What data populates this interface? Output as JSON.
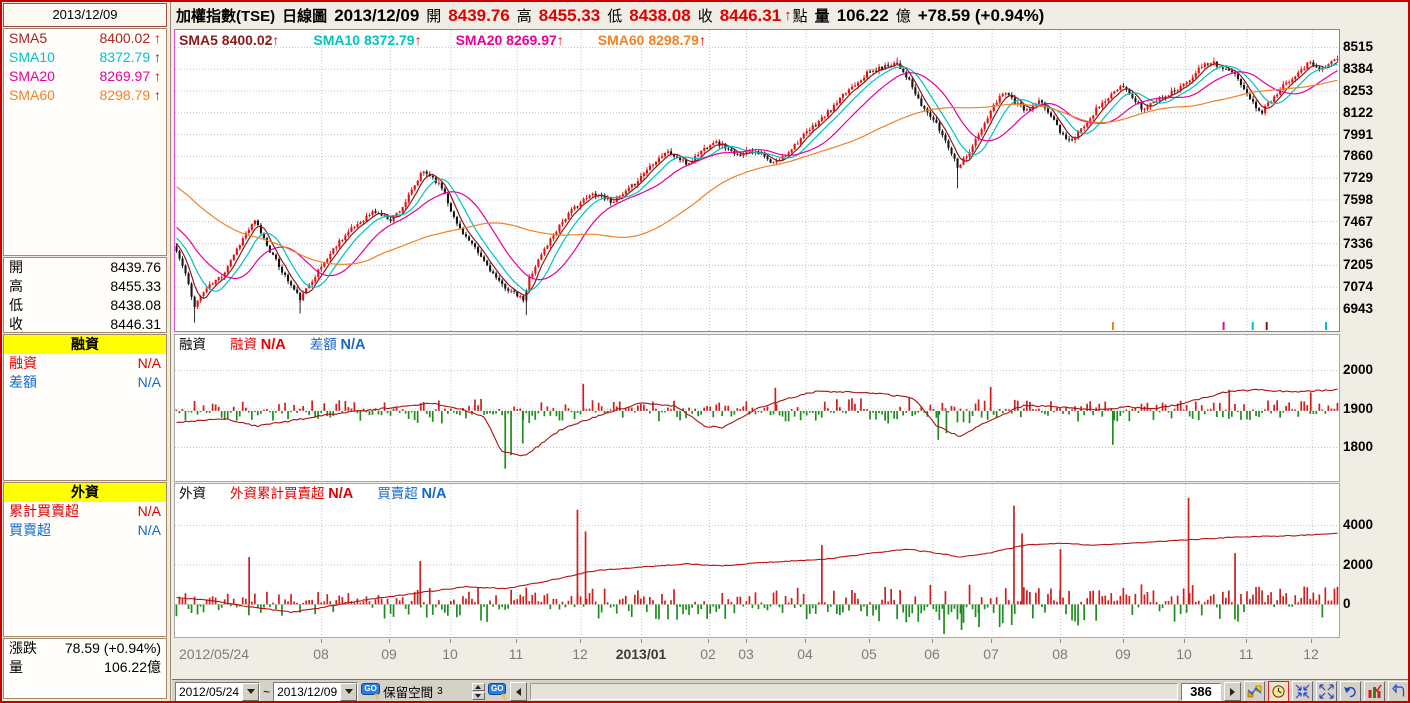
{
  "window": {
    "title": "加權指數(TSE) 日線圖"
  },
  "sidebar": {
    "date": "2013/12/09",
    "sma_rows": [
      {
        "label": "SMA5",
        "value": "8400.02",
        "arrow": "↑",
        "color": "#aa2222"
      },
      {
        "label": "SMA10",
        "value": "8372.79",
        "arrow": "↑",
        "color": "#00c3c3"
      },
      {
        "label": "SMA20",
        "value": "8269.97",
        "arrow": "↑",
        "color": "#e8009e"
      },
      {
        "label": "SMA60",
        "value": "8298.79",
        "arrow": "↑",
        "color": "#f08228"
      }
    ],
    "ohlc_rows": [
      {
        "label": "開",
        "value": "8439.76"
      },
      {
        "label": "高",
        "value": "8455.33"
      },
      {
        "label": "低",
        "value": "8438.08"
      },
      {
        "label": "收",
        "value": "8446.31"
      }
    ],
    "margin": {
      "header": "融資",
      "rows": [
        {
          "label": "融資",
          "value": "N/A",
          "color": "#e00000"
        },
        {
          "label": "差額",
          "value": "N/A",
          "color": "#1569c8"
        }
      ]
    },
    "foreign": {
      "header": "外資",
      "rows": [
        {
          "label": "累計買賣超",
          "value": "N/A",
          "color": "#e00000"
        },
        {
          "label": "買賣超",
          "value": "N/A",
          "color": "#1569c8"
        }
      ]
    },
    "footer_rows": [
      {
        "label": "漲跌",
        "value": "78.59 (+0.94%)"
      },
      {
        "label": "量",
        "value": "106.22億"
      }
    ]
  },
  "header": {
    "title": "加權指數(TSE)",
    "period": "日線圖",
    "date": "2013/12/09",
    "open_label": "開",
    "open": "8439.76",
    "high_label": "高",
    "high": "8455.33",
    "low_label": "低",
    "low": "8438.08",
    "close_label": "收",
    "close": "8446.31",
    "arrow": "↑",
    "point": "點",
    "vol_label": "量",
    "volume": "106.22",
    "vol_unit": "億",
    "change": "+78.59 (+0.94%)"
  },
  "main_legend": [
    {
      "label": "SMA5",
      "value": "8400.02",
      "arrow": "↑",
      "color": "#8b1a1a"
    },
    {
      "label": "SMA10",
      "value": "8372.79",
      "arrow": "↑",
      "color": "#00c3c3"
    },
    {
      "label": "SMA20",
      "value": "8269.97",
      "arrow": "↑",
      "color": "#e8009e"
    },
    {
      "label": "SMA60",
      "value": "8298.79",
      "arrow": "↑",
      "color": "#f08228"
    }
  ],
  "sub1_legend": {
    "name": "融資",
    "s1_label": "融資",
    "s1_value": "N/A",
    "s2_label": "差額",
    "s2_value": "N/A",
    "s1_color": "#e00000",
    "s2_color": "#1569c8"
  },
  "sub2_legend": {
    "name": "外資",
    "s1_label": "外資累計買賣超",
    "s1_value": "N/A",
    "s2_label": "買賣超",
    "s2_value": "N/A",
    "s1_color": "#e00000",
    "s2_color": "#1569c8"
  },
  "xaxis": {
    "start_label": "2012/05/24",
    "start_f": 0.004,
    "ticks": [
      {
        "label": "08",
        "f": 0.126
      },
      {
        "label": "09",
        "f": 0.185
      },
      {
        "label": "10",
        "f": 0.237
      },
      {
        "label": "11",
        "f": 0.294
      },
      {
        "label": "12",
        "f": 0.349
      },
      {
        "label": "2013/01",
        "f": 0.401,
        "bold": true
      },
      {
        "label": "02",
        "f": 0.459
      },
      {
        "label": "03",
        "f": 0.491
      },
      {
        "label": "04",
        "f": 0.542
      },
      {
        "label": "05",
        "f": 0.597
      },
      {
        "label": "06",
        "f": 0.651
      },
      {
        "label": "07",
        "f": 0.702
      },
      {
        "label": "08",
        "f": 0.761
      },
      {
        "label": "09",
        "f": 0.815
      },
      {
        "label": "10",
        "f": 0.868
      },
      {
        "label": "11",
        "f": 0.921
      },
      {
        "label": "12",
        "f": 0.977
      }
    ]
  },
  "toolbar": {
    "from_date": "2012/05/24",
    "range_sep": "~",
    "to_date": "2013/12/09",
    "go_label": "GO",
    "reserve_label": "保留空間",
    "reserve_value": "3",
    "bar_count": "386",
    "icons": [
      "chart-settings",
      "clock",
      "collapse",
      "expand",
      "undo",
      "volume-bars",
      "return"
    ]
  },
  "chart_data": [
    {
      "type": "candlestick",
      "name": "加權指數(TSE) 日線圖",
      "bars": 386,
      "y_ticks": [
        8515,
        8384,
        8253,
        8122,
        7991,
        7860,
        7729,
        7598,
        7467,
        7336,
        7205,
        7074,
        6943
      ],
      "y_top": 8620,
      "y_bottom": 6810,
      "up_color": "#e01010",
      "down_color": "#151515",
      "sma": [
        {
          "window": 5,
          "color": "#8b1a1a"
        },
        {
          "window": 10,
          "color": "#00c3c3"
        },
        {
          "window": 20,
          "color": "#e8009e"
        },
        {
          "window": 60,
          "color": "#f08228"
        }
      ],
      "seed": 11,
      "price_path": [
        [
          0,
          7290
        ],
        [
          0.008,
          7150
        ],
        [
          0.015,
          6960
        ],
        [
          0.025,
          7060
        ],
        [
          0.04,
          7150
        ],
        [
          0.05,
          7280
        ],
        [
          0.06,
          7400
        ],
        [
          0.068,
          7470
        ],
        [
          0.08,
          7300
        ],
        [
          0.09,
          7180
        ],
        [
          0.1,
          7070
        ],
        [
          0.107,
          7000
        ],
        [
          0.115,
          7100
        ],
        [
          0.125,
          7200
        ],
        [
          0.14,
          7350
        ],
        [
          0.155,
          7450
        ],
        [
          0.17,
          7530
        ],
        [
          0.185,
          7480
        ],
        [
          0.195,
          7560
        ],
        [
          0.205,
          7680
        ],
        [
          0.212,
          7770
        ],
        [
          0.22,
          7740
        ],
        [
          0.23,
          7660
        ],
        [
          0.24,
          7470
        ],
        [
          0.252,
          7350
        ],
        [
          0.265,
          7230
        ],
        [
          0.278,
          7100
        ],
        [
          0.29,
          7040
        ],
        [
          0.3,
          6990
        ],
        [
          0.303,
          7120
        ],
        [
          0.315,
          7280
        ],
        [
          0.33,
          7450
        ],
        [
          0.345,
          7570
        ],
        [
          0.36,
          7640
        ],
        [
          0.375,
          7590
        ],
        [
          0.385,
          7630
        ],
        [
          0.395,
          7700
        ],
        [
          0.41,
          7820
        ],
        [
          0.422,
          7890
        ],
        [
          0.432,
          7850
        ],
        [
          0.44,
          7810
        ],
        [
          0.45,
          7880
        ],
        [
          0.462,
          7950
        ],
        [
          0.472,
          7920
        ],
        [
          0.482,
          7860
        ],
        [
          0.493,
          7900
        ],
        [
          0.503,
          7880
        ],
        [
          0.513,
          7810
        ],
        [
          0.523,
          7860
        ],
        [
          0.535,
          7950
        ],
        [
          0.55,
          8050
        ],
        [
          0.565,
          8150
        ],
        [
          0.58,
          8270
        ],
        [
          0.595,
          8360
        ],
        [
          0.61,
          8400
        ],
        [
          0.62,
          8430
        ],
        [
          0.63,
          8330
        ],
        [
          0.64,
          8180
        ],
        [
          0.652,
          8080
        ],
        [
          0.663,
          7950
        ],
        [
          0.673,
          7800
        ],
        [
          0.682,
          7880
        ],
        [
          0.692,
          8000
        ],
        [
          0.703,
          8150
        ],
        [
          0.713,
          8260
        ],
        [
          0.723,
          8180
        ],
        [
          0.733,
          8130
        ],
        [
          0.743,
          8190
        ],
        [
          0.752,
          8120
        ],
        [
          0.763,
          7990
        ],
        [
          0.772,
          7950
        ],
        [
          0.782,
          8050
        ],
        [
          0.793,
          8150
        ],
        [
          0.805,
          8230
        ],
        [
          0.815,
          8280
        ],
        [
          0.825,
          8200
        ],
        [
          0.833,
          8140
        ],
        [
          0.843,
          8200
        ],
        [
          0.853,
          8230
        ],
        [
          0.863,
          8270
        ],
        [
          0.873,
          8330
        ],
        [
          0.883,
          8400
        ],
        [
          0.893,
          8430
        ],
        [
          0.9,
          8390
        ],
        [
          0.91,
          8360
        ],
        [
          0.92,
          8270
        ],
        [
          0.928,
          8170
        ],
        [
          0.935,
          8130
        ],
        [
          0.945,
          8220
        ],
        [
          0.955,
          8300
        ],
        [
          0.965,
          8360
        ],
        [
          0.975,
          8420
        ],
        [
          0.985,
          8390
        ],
        [
          0.993,
          8420
        ],
        [
          1,
          8446
        ]
      ],
      "wicks": [
        [
          0.015,
          6860
        ],
        [
          0.107,
          6915
        ],
        [
          0.3,
          6905
        ],
        [
          0.673,
          7668
        ],
        [
          0.62,
          8455
        ],
        [
          0.893,
          8455
        ]
      ],
      "bottom_markers": [
        {
          "f": 0.805,
          "color": "#f08228"
        },
        {
          "f": 0.9,
          "color": "#e8009e"
        },
        {
          "f": 0.925,
          "color": "#00c3c3"
        },
        {
          "f": 0.937,
          "color": "#8b1a1a"
        },
        {
          "f": 0.988,
          "color": "#00c3c3"
        }
      ]
    },
    {
      "type": "bar+line",
      "name": "融資",
      "y_ticks": [
        2000,
        1900,
        1800
      ],
      "y_top": 2092,
      "y_bottom": 1713,
      "bar_base": 1895,
      "bar_up_color": "#cc2020",
      "bar_down_color": "#1f8c1f",
      "line_color": "#aa1111",
      "seed": 23,
      "amp_path": [
        [
          0,
          26
        ],
        [
          0.2,
          30
        ],
        [
          0.27,
          42
        ],
        [
          0.32,
          30
        ],
        [
          0.45,
          26
        ],
        [
          0.55,
          30
        ],
        [
          0.64,
          38
        ],
        [
          0.75,
          28
        ],
        [
          0.9,
          26
        ],
        [
          1,
          30
        ]
      ],
      "bias_path": [
        [
          0,
          0.5
        ],
        [
          0.25,
          0.45
        ],
        [
          0.3,
          0.35
        ],
        [
          0.38,
          0.6
        ],
        [
          0.5,
          0.5
        ],
        [
          0.63,
          0.4
        ],
        [
          0.72,
          0.55
        ],
        [
          0.85,
          0.5
        ],
        [
          1,
          0.52
        ]
      ],
      "spikes": [
        [
          0.283,
          -150
        ],
        [
          0.288,
          -115
        ],
        [
          0.298,
          -85
        ],
        [
          0.35,
          70
        ],
        [
          0.515,
          60
        ],
        [
          0.655,
          -75
        ],
        [
          0.662,
          -58
        ],
        [
          0.7,
          62
        ],
        [
          0.805,
          -88
        ],
        [
          0.905,
          55
        ],
        [
          0.975,
          48
        ]
      ],
      "line_path": [
        [
          0,
          1865
        ],
        [
          0.04,
          1875
        ],
        [
          0.07,
          1855
        ],
        [
          0.1,
          1870
        ],
        [
          0.13,
          1885
        ],
        [
          0.16,
          1895
        ],
        [
          0.19,
          1905
        ],
        [
          0.22,
          1915
        ],
        [
          0.245,
          1900
        ],
        [
          0.265,
          1880
        ],
        [
          0.28,
          1790
        ],
        [
          0.3,
          1778
        ],
        [
          0.33,
          1845
        ],
        [
          0.37,
          1890
        ],
        [
          0.4,
          1915
        ],
        [
          0.43,
          1908
        ],
        [
          0.455,
          1855
        ],
        [
          0.47,
          1852
        ],
        [
          0.5,
          1900
        ],
        [
          0.53,
          1930
        ],
        [
          0.55,
          1945
        ],
        [
          0.58,
          1944
        ],
        [
          0.61,
          1938
        ],
        [
          0.635,
          1928
        ],
        [
          0.655,
          1855
        ],
        [
          0.675,
          1828
        ],
        [
          0.7,
          1870
        ],
        [
          0.73,
          1910
        ],
        [
          0.76,
          1905
        ],
        [
          0.79,
          1898
        ],
        [
          0.82,
          1905
        ],
        [
          0.84,
          1900
        ],
        [
          0.86,
          1910
        ],
        [
          0.88,
          1925
        ],
        [
          0.905,
          1945
        ],
        [
          0.93,
          1950
        ],
        [
          0.96,
          1944
        ],
        [
          1,
          1950
        ]
      ],
      "line_jitter": 4
    },
    {
      "type": "bar+line",
      "name": "外資",
      "y_ticks": [
        4000,
        2000,
        0
      ],
      "y_top": 6100,
      "y_bottom": -1650,
      "bar_base": 0,
      "bar_up_color": "#cc2020",
      "bar_down_color": "#1f8c1f",
      "line_color": "#bb1111",
      "seed": 37,
      "amp_path": [
        [
          0,
          600
        ],
        [
          0.15,
          700
        ],
        [
          0.3,
          1000
        ],
        [
          0.45,
          800
        ],
        [
          0.6,
          900
        ],
        [
          0.7,
          1200
        ],
        [
          0.85,
          1000
        ],
        [
          1,
          900
        ]
      ],
      "bias_path": [
        [
          0,
          0.45
        ],
        [
          0.08,
          0.48
        ],
        [
          0.2,
          0.62
        ],
        [
          0.3,
          0.72
        ],
        [
          0.4,
          0.6
        ],
        [
          0.5,
          0.62
        ],
        [
          0.6,
          0.55
        ],
        [
          0.645,
          0.3
        ],
        [
          0.69,
          0.35
        ],
        [
          0.74,
          0.7
        ],
        [
          0.8,
          0.6
        ],
        [
          0.87,
          0.72
        ],
        [
          0.94,
          0.6
        ],
        [
          1,
          0.65
        ]
      ],
      "spikes": [
        [
          0.063,
          2400
        ],
        [
          0.21,
          2200
        ],
        [
          0.345,
          4800
        ],
        [
          0.352,
          3700
        ],
        [
          0.555,
          3000
        ],
        [
          0.66,
          -1500
        ],
        [
          0.675,
          -1300
        ],
        [
          0.69,
          -1150
        ],
        [
          0.72,
          5000
        ],
        [
          0.727,
          3600
        ],
        [
          0.76,
          2800
        ],
        [
          0.87,
          5400
        ],
        [
          0.91,
          2600
        ]
      ],
      "line_path": [
        [
          0,
          350
        ],
        [
          0.03,
          200
        ],
        [
          0.06,
          -100
        ],
        [
          0.1,
          -400
        ],
        [
          0.13,
          -100
        ],
        [
          0.17,
          300
        ],
        [
          0.21,
          600
        ],
        [
          0.25,
          900
        ],
        [
          0.285,
          800
        ],
        [
          0.32,
          1200
        ],
        [
          0.36,
          1700
        ],
        [
          0.4,
          1900
        ],
        [
          0.44,
          2050
        ],
        [
          0.47,
          1950
        ],
        [
          0.5,
          2100
        ],
        [
          0.53,
          2200
        ],
        [
          0.56,
          2300
        ],
        [
          0.6,
          2600
        ],
        [
          0.63,
          2800
        ],
        [
          0.655,
          2600
        ],
        [
          0.675,
          2400
        ],
        [
          0.7,
          2600
        ],
        [
          0.73,
          3000
        ],
        [
          0.76,
          3100
        ],
        [
          0.79,
          3000
        ],
        [
          0.82,
          3100
        ],
        [
          0.85,
          3200
        ],
        [
          0.88,
          3300
        ],
        [
          0.91,
          3400
        ],
        [
          0.94,
          3450
        ],
        [
          0.97,
          3500
        ],
        [
          1,
          3600
        ]
      ],
      "line_jitter": 45
    }
  ]
}
